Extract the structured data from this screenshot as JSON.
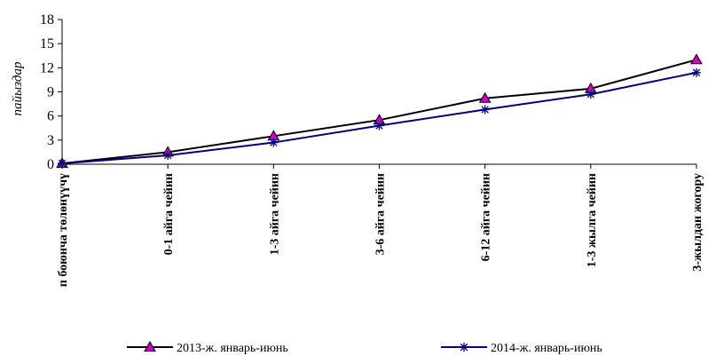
{
  "chart_data": {
    "type": "line",
    "categories": [
      "п боюнча төлөнүүчү",
      "0-1 айга чейин",
      "1-3 айга чейин",
      "3-6 айга чейин",
      "6-12 айга чейин",
      "1-3 жылга чейин",
      "3-жылдан жогору"
    ],
    "series": [
      {
        "name": "2013-ж. январь-июнь",
        "values": [
          0.1,
          1.5,
          3.5,
          5.5,
          8.2,
          9.4,
          13.0
        ],
        "color": "#000000",
        "marker": "triangle",
        "marker_color": "#cc00cc"
      },
      {
        "name": "2014-ж. январь-июнь",
        "values": [
          0.1,
          1.1,
          2.7,
          4.8,
          6.8,
          8.7,
          11.4
        ],
        "color": "#000080",
        "marker": "star",
        "marker_color": "#000080"
      }
    ],
    "ylabel": "пайыздар",
    "xlabel": "",
    "ylim": [
      0,
      18
    ],
    "yticks": [
      0,
      3,
      6,
      9,
      12,
      15,
      18
    ],
    "grid": false,
    "legend_position": "bottom"
  }
}
